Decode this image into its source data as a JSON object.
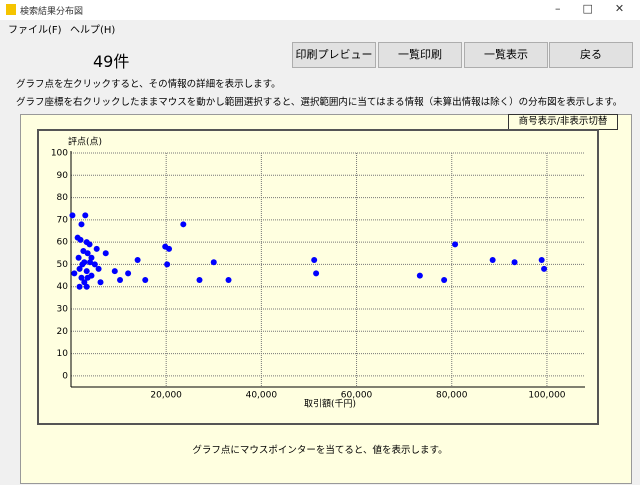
{
  "window": {
    "title": "検索結果分布図"
  },
  "menu": [
    "ファイル(F)",
    "ヘルプ(H)"
  ],
  "count": "49件",
  "buttons": [
    "印刷プレビュー",
    "一覧印刷",
    "一覧表示",
    "戻る"
  ],
  "instructions": [
    "グラフ点を左クリックすると、その情報の詳細を表示します。",
    "グラフ座標を右クリックしたままマウスを動かし範囲選択すると、選択範囲内に当てはまる情報（未算出情報は除く）の分布図を表示します。"
  ],
  "toggle_button": "商号表示/非表示切替",
  "footer": "グラフ点にマウスポインターを当てると、値を表示します。",
  "chart_data": {
    "type": "scatter",
    "y_label": "評点(点)",
    "x_label": "取引額(千円)",
    "xlim": [
      0,
      108000
    ],
    "ylim": [
      -5,
      100
    ],
    "xticks": [
      {
        "value": 20000,
        "label": "20,000"
      },
      {
        "value": 40000,
        "label": "40,000"
      },
      {
        "value": 60000,
        "label": "60,000"
      },
      {
        "value": 80000,
        "label": "80,000"
      },
      {
        "value": 100000,
        "label": "100,000"
      }
    ],
    "yticks": [
      0,
      10,
      20,
      30,
      40,
      50,
      60,
      70,
      80,
      90,
      100
    ],
    "grid": true,
    "color": "#0000ff",
    "x": [
      300,
      3000,
      2200,
      1400,
      2000,
      3300,
      2600,
      3500,
      4300,
      2800,
      4000,
      2400,
      5000,
      5400,
      7300,
      700,
      1800,
      3300,
      5800,
      9200,
      12000,
      2200,
      3500,
      4300,
      1800,
      3300,
      6200,
      10300,
      14000,
      15600,
      19800,
      20600,
      20200,
      23600,
      27000,
      30000,
      33100,
      51100,
      51500,
      73300,
      78400,
      80700,
      88600,
      93200,
      98900,
      99400,
      1600,
      3900,
      2800
    ],
    "values": [
      72,
      72,
      68,
      62,
      61,
      60,
      56,
      55,
      53,
      51,
      51,
      50,
      50,
      57,
      55,
      46,
      48,
      47,
      48,
      47,
      46,
      44,
      44,
      45,
      40,
      40,
      42,
      43,
      52,
      43,
      58,
      57,
      50,
      68,
      43,
      51,
      43,
      52,
      46,
      45,
      43,
      59,
      52,
      51,
      52,
      48,
      53,
      59,
      42
    ]
  }
}
